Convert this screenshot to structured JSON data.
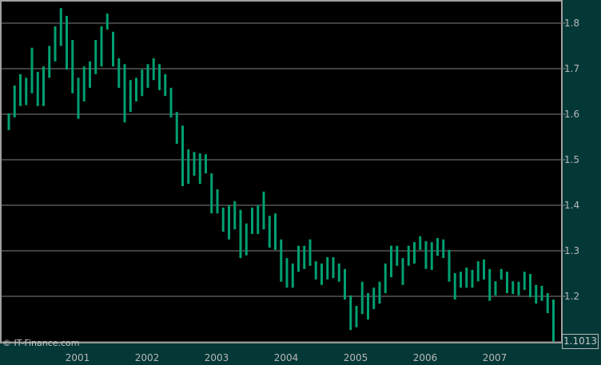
{
  "chart_data": {
    "type": "bar",
    "subtype": "ohlc-range",
    "title": "",
    "xlabel": "",
    "ylabel": "",
    "start_month": "2000-01",
    "ylim": [
      1.1,
      1.85
    ],
    "yticks": [
      "1.8",
      "1.7",
      "1.6",
      "1.5",
      "1.4",
      "1.3",
      "1.2"
    ],
    "ytick_values": [
      1.8,
      1.7,
      1.6,
      1.5,
      1.4,
      1.3,
      1.2
    ],
    "xticks": [
      "2001",
      "2002",
      "2003",
      "2004",
      "2005",
      "2006",
      "2007"
    ],
    "grid": true,
    "axis_position": "right",
    "last_price": "1.1013",
    "bar_color": "#00a070",
    "high": [
      1.602,
      1.663,
      1.688,
      1.68,
      1.746,
      1.693,
      1.705,
      1.75,
      1.793,
      1.833,
      1.816,
      1.763,
      1.68,
      1.705,
      1.716,
      1.763,
      1.793,
      1.821,
      1.781,
      1.723,
      1.71,
      1.675,
      1.68,
      1.698,
      1.71,
      1.723,
      1.71,
      1.688,
      1.658,
      1.605,
      1.575,
      1.523,
      1.517,
      1.514,
      1.512,
      1.47,
      1.435,
      1.395,
      1.4,
      1.409,
      1.39,
      1.36,
      1.395,
      1.4,
      1.43,
      1.377,
      1.382,
      1.325,
      1.284,
      1.272,
      1.311,
      1.311,
      1.325,
      1.277,
      1.272,
      1.286,
      1.286,
      1.272,
      1.26,
      1.202,
      1.179,
      1.232,
      1.207,
      1.219,
      1.232,
      1.272,
      1.311,
      1.311,
      1.284,
      1.311,
      1.319,
      1.332,
      1.321,
      1.319,
      1.328,
      1.325,
      1.302,
      1.251,
      1.254,
      1.263,
      1.258,
      1.277,
      1.281,
      1.26,
      1.233,
      1.26,
      1.254,
      1.233,
      1.232,
      1.254,
      1.249,
      1.225,
      1.223,
      1.207,
      1.193
    ],
    "low": [
      1.565,
      1.593,
      1.618,
      1.62,
      1.646,
      1.618,
      1.618,
      1.68,
      1.716,
      1.75,
      1.698,
      1.646,
      1.59,
      1.628,
      1.658,
      1.688,
      1.705,
      1.786,
      1.705,
      1.658,
      1.582,
      1.605,
      1.628,
      1.64,
      1.658,
      1.675,
      1.653,
      1.64,
      1.593,
      1.535,
      1.442,
      1.447,
      1.465,
      1.447,
      1.47,
      1.382,
      1.382,
      1.342,
      1.325,
      1.347,
      1.284,
      1.29,
      1.337,
      1.337,
      1.347,
      1.307,
      1.302,
      1.232,
      1.219,
      1.219,
      1.254,
      1.26,
      1.267,
      1.237,
      1.225,
      1.237,
      1.24,
      1.232,
      1.193,
      1.126,
      1.132,
      1.161,
      1.149,
      1.172,
      1.184,
      1.207,
      1.242,
      1.267,
      1.225,
      1.267,
      1.272,
      1.302,
      1.26,
      1.258,
      1.289,
      1.284,
      1.232,
      1.193,
      1.219,
      1.219,
      1.219,
      1.233,
      1.237,
      1.19,
      1.202,
      1.237,
      1.207,
      1.205,
      1.202,
      1.214,
      1.198,
      1.184,
      1.19,
      1.163,
      1.101
    ]
  },
  "watermark": "© IT-Finance.com",
  "colors": {
    "background": "#033836",
    "plot": "#000000",
    "grid": "#808080",
    "bars": "#00a070"
  }
}
